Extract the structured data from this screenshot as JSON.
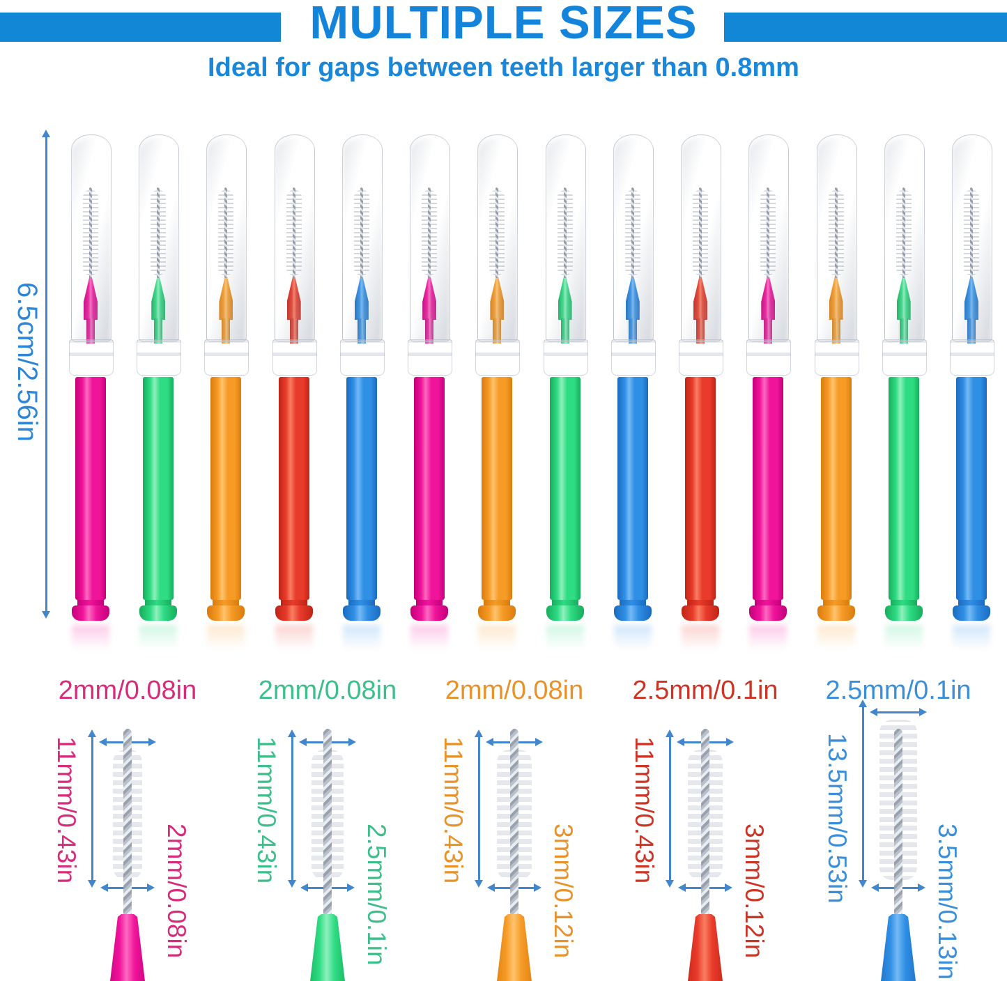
{
  "header": {
    "title": "MULTIPLE SIZES",
    "subtitle": "Ideal for gaps between teeth larger than 0.8mm"
  },
  "overview": {
    "total_length_label": "6.5cm/2.56in",
    "brush_order": [
      "pink",
      "green",
      "orange",
      "red",
      "blue",
      "pink",
      "orange",
      "green",
      "blue",
      "red",
      "pink",
      "orange",
      "green",
      "blue"
    ]
  },
  "details": [
    {
      "color": "pink",
      "tip_width_label": "2mm/0.08in",
      "brush_length_label": "11mm/0.43in",
      "brush_diameter_label": "2mm/0.08in",
      "length_mm": 11,
      "diameter_mm": 2
    },
    {
      "color": "green",
      "tip_width_label": "2mm/0.08in",
      "brush_length_label": "11mm/0.43in",
      "brush_diameter_label": "2.5mm/0.1in",
      "length_mm": 11,
      "diameter_mm": 2.5
    },
    {
      "color": "orange",
      "tip_width_label": "2mm/0.08in",
      "brush_length_label": "11mm/0.43in",
      "brush_diameter_label": "3mm/0.12in",
      "length_mm": 11,
      "diameter_mm": 3
    },
    {
      "color": "red",
      "tip_width_label": "2.5mm/0.1in",
      "brush_length_label": "11mm/0.43in",
      "brush_diameter_label": "3mm/0.12in",
      "length_mm": 11,
      "diameter_mm": 3
    },
    {
      "color": "blue",
      "tip_width_label": "2.5mm/0.1in",
      "brush_length_label": "13.5mm/0.53in",
      "brush_diameter_label": "3.5mm/0.13in",
      "length_mm": 13.5,
      "diameter_mm": 3.5
    }
  ],
  "palette": {
    "title_blue": "#1484DB",
    "bar_blue": "#1187D6",
    "subtitle_blue": "#1A87D8",
    "dimension_blue": "#2E86D8",
    "arrow_blue": "#4287CE",
    "body": {
      "pink": {
        "main": "#F0149B",
        "light": "#FC6AC0",
        "dark": "#C4007A"
      },
      "green": {
        "main": "#2EDC84",
        "light": "#8FF0BC",
        "dark": "#17AD5C"
      },
      "orange": {
        "main": "#F69B26",
        "light": "#FFC36E",
        "dark": "#D97C0E"
      },
      "red": {
        "main": "#E93B2B",
        "light": "#F87E62",
        "dark": "#BF2417"
      },
      "blue": {
        "main": "#2F8FE5",
        "light": "#74B9F4",
        "dark": "#1A6BC0"
      }
    },
    "labels": {
      "pink": "#D52C7C",
      "green": "#3DBE8B",
      "orange": "#E8922C",
      "red": "#CC3425",
      "blue": "#3B8FD9"
    }
  }
}
